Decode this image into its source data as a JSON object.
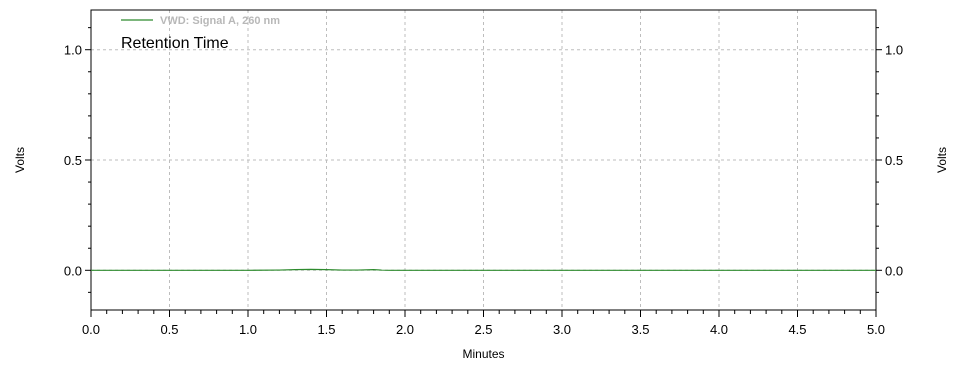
{
  "chart_data": {
    "type": "line",
    "title": "",
    "xlabel": "Minutes",
    "ylabel_left": "Volts",
    "ylabel_right": "Volts",
    "xlim": [
      0.0,
      5.0
    ],
    "ylim": [
      -0.18,
      1.18
    ],
    "x_ticks": [
      "0.0",
      "0.5",
      "1.0",
      "1.5",
      "2.0",
      "2.5",
      "3.0",
      "3.5",
      "4.0",
      "4.5",
      "5.0"
    ],
    "y_ticks": [
      "0.0",
      "0.5",
      "1.0"
    ],
    "grid": true,
    "legend_position": "top-left",
    "annotation": "Retention Time",
    "series": [
      {
        "name": "VWD: Signal A, 260 nm",
        "color": "#2e8b2e",
        "x": [
          0.0,
          0.5,
          1.0,
          1.2,
          1.3,
          1.4,
          1.5,
          1.6,
          1.7,
          1.8,
          1.85,
          1.9,
          2.0,
          2.5,
          3.0,
          3.5,
          4.0,
          4.5,
          5.0
        ],
        "y": [
          0.0,
          0.0,
          0.0,
          0.001,
          0.003,
          0.004,
          0.003,
          0.001,
          0.001,
          0.003,
          0.001,
          0.0,
          0.0,
          0.0,
          0.0,
          0.0,
          0.0,
          0.0,
          0.0
        ]
      }
    ]
  }
}
